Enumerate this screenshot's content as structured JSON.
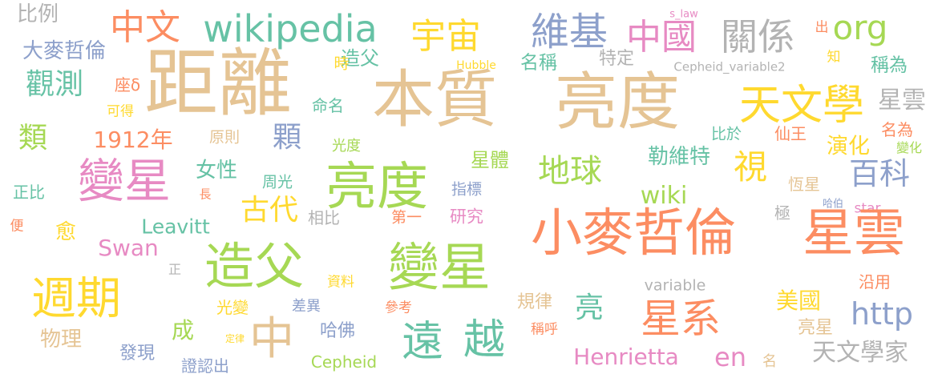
{
  "colors": {
    "tan": "#e5c494",
    "green": "#a6d854",
    "yellow": "#ffd92f",
    "orange": "#fc8d62",
    "pink": "#e78ac3",
    "blue": "#8da0cb",
    "teal": "#66c2a5",
    "gray": "#b3b3b3"
  },
  "words": [
    "比例",
    "大麥哲倫",
    "距離",
    "中文",
    "wikipedia",
    "宇宙",
    "維基",
    "中國",
    "關係",
    "org",
    "s_law",
    "出",
    "觀測",
    "座δ",
    "造父",
    "名稱",
    "特定",
    "時",
    "Hubble",
    "Cepheid_variable2",
    "知",
    "稱為",
    "本質",
    "亮度",
    "天文學",
    "星雲",
    "可得",
    "命名",
    "類",
    "顆",
    "1912年",
    "原則",
    "光度",
    "比於",
    "仙王",
    "名為",
    "演化",
    "變化",
    "星體",
    "勒維特",
    "視",
    "變星",
    "女性",
    "周光",
    "百科",
    "長",
    "亮度",
    "地球",
    "恆星",
    "指標",
    "wiki",
    "正比",
    "古代",
    "哈伯",
    "相比",
    "極",
    "第一",
    "star",
    "愈",
    "Leavitt",
    "研究",
    "小麥哲倫",
    "星雲",
    "便",
    "Swan",
    "造父",
    "變星",
    "正",
    "週期",
    "資料",
    "variable",
    "沿用",
    "規律",
    "美國",
    "光變",
    "差異",
    "參考",
    "亮",
    "http",
    "成",
    "星系",
    "中",
    "物理",
    "稱呼",
    "遠",
    "越",
    "亮星",
    "哈佛",
    "天文學家",
    "定律",
    "發現",
    "證認出",
    "Cepheid",
    "Henrietta",
    "en",
    "名"
  ]
}
